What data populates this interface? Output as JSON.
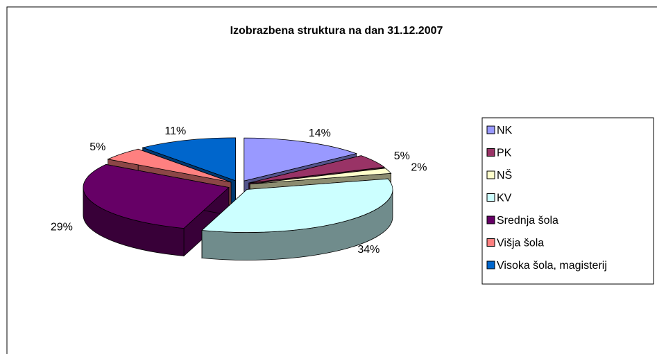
{
  "chart_data": {
    "type": "pie",
    "title": "Izobrazbena struktura na dan 31.12.2007",
    "categories": [
      "NK",
      "PK",
      "NŠ",
      "KV",
      "Srednja šola",
      "Višja šola",
      "Visoka šola, magisterij"
    ],
    "values": [
      14,
      5,
      2,
      34,
      29,
      5,
      11
    ],
    "value_labels": [
      "14%",
      "5%",
      "2%",
      "34%",
      "29%",
      "5%",
      "11%"
    ],
    "colors": [
      "#9999ff",
      "#993366",
      "#ffffcc",
      "#ccffff",
      "#660066",
      "#ff8080",
      "#0066cc"
    ],
    "legend": "right"
  }
}
